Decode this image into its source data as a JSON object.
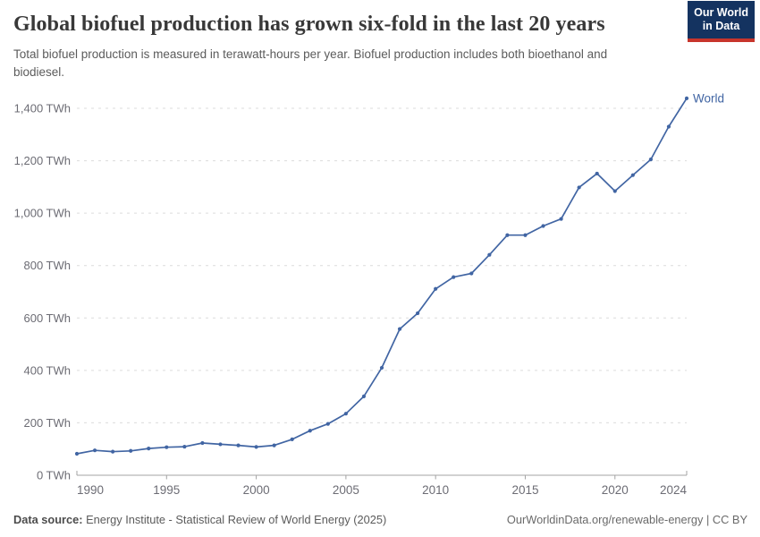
{
  "header": {
    "title": "Global biofuel production has grown six-fold in the last 20 years",
    "subtitle": "Total biofuel production is measured in terawatt-hours per year. Biofuel production includes both bioethanol and biodiesel.",
    "logo": {
      "line1": "Our World",
      "line2": "in Data"
    }
  },
  "chart_data": {
    "type": "line",
    "title": "Global biofuel production has grown six-fold in the last 20 years",
    "unit": "TWh",
    "xlabel": "",
    "ylabel": "",
    "xlim": [
      1990,
      2024
    ],
    "ylim": [
      0,
      1400
    ],
    "x_ticks": [
      1990,
      1995,
      2000,
      2005,
      2010,
      2015,
      2020,
      2024
    ],
    "y_ticks": [
      0,
      200,
      400,
      600,
      800,
      1000,
      1200,
      1400
    ],
    "y_tick_suffix": " TWh",
    "grid": "horizontal-dashed",
    "legend": "end-of-line-label",
    "x": [
      1990,
      1991,
      1992,
      1993,
      1994,
      1995,
      1996,
      1997,
      1998,
      1999,
      2000,
      2001,
      2002,
      2003,
      2004,
      2005,
      2006,
      2007,
      2008,
      2009,
      2010,
      2011,
      2012,
      2013,
      2014,
      2015,
      2016,
      2017,
      2018,
      2019,
      2020,
      2021,
      2022,
      2023,
      2024
    ],
    "series": [
      {
        "name": "World",
        "color": "#4165a3",
        "values": [
          82,
          95,
          90,
          93,
          102,
          107,
          109,
          123,
          118,
          114,
          108,
          114,
          137,
          170,
          196,
          235,
          301,
          410,
          558,
          618,
          711,
          756,
          770,
          841,
          916,
          916,
          951,
          978,
          1098,
          1151,
          1084,
          1145,
          1205,
          1330,
          1438
        ]
      }
    ]
  },
  "footer": {
    "source_label": "Data source:",
    "source_text": " Energy Institute - Statistical Review of World Energy (2025)",
    "right_text": "OurWorldinData.org/renewable-energy | CC BY"
  },
  "colors": {
    "title": "#383838",
    "subtitle": "#5b5b5b",
    "tick_label": "#6c6c74",
    "gridline": "#dcdcdc",
    "axis_line": "#a3a3a3",
    "logo_bg": "#143360",
    "logo_bar": "#c7352c",
    "series_blue": "#4165a3"
  }
}
